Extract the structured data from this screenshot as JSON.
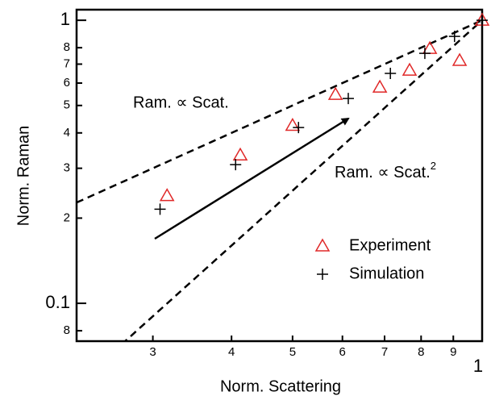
{
  "chart_data": {
    "type": "scatter",
    "x_label": "Norm. Scattering",
    "y_label": "Norm. Raman",
    "xscale": "log",
    "yscale": "log",
    "xlim": [
      0.227,
      1.0
    ],
    "ylim": [
      0.0735,
      1.09
    ],
    "xticks": [
      {
        "value": 0.3,
        "label": "3"
      },
      {
        "value": 0.4,
        "label": "4"
      },
      {
        "value": 0.5,
        "label": "5"
      },
      {
        "value": 0.6,
        "label": "6"
      },
      {
        "value": 0.7,
        "label": "7"
      },
      {
        "value": 0.8,
        "label": "8"
      },
      {
        "value": 0.9,
        "label": "9"
      },
      1
    ],
    "yticks": [
      1,
      {
        "value": 0.8,
        "label": "8"
      },
      {
        "value": 0.7,
        "label": "7"
      },
      {
        "value": 0.6,
        "label": "6"
      },
      {
        "value": 0.5,
        "label": "5"
      },
      {
        "value": 0.4,
        "label": "4"
      },
      {
        "value": 0.3,
        "label": "3"
      },
      {
        "value": 0.2,
        "label": "2"
      },
      0.1,
      {
        "value": 0.08,
        "label": "8"
      }
    ],
    "annotations": [
      {
        "text": "Ram. ∝ Scat."
      },
      {
        "text": "Ram. ∝ Scat.",
        "exponent": 2
      }
    ],
    "series": [
      {
        "name": "Experiment",
        "marker": "triangle",
        "color": "#e02828",
        "x": [
          0.316,
          0.413,
          0.5,
          0.585,
          0.688,
          0.767,
          0.826,
          0.921,
          1.0
        ],
        "y": [
          0.24,
          0.334,
          0.425,
          0.547,
          0.58,
          0.666,
          0.795,
          0.721,
          1.0
        ]
      },
      {
        "name": "Simulation",
        "marker": "cross",
        "color": "#000000",
        "x": [
          0.308,
          0.406,
          0.511,
          0.613,
          0.715,
          0.811,
          0.904,
          1.0
        ],
        "y": [
          0.215,
          0.309,
          0.418,
          0.529,
          0.649,
          0.764,
          0.877,
          1.0
        ]
      }
    ]
  }
}
